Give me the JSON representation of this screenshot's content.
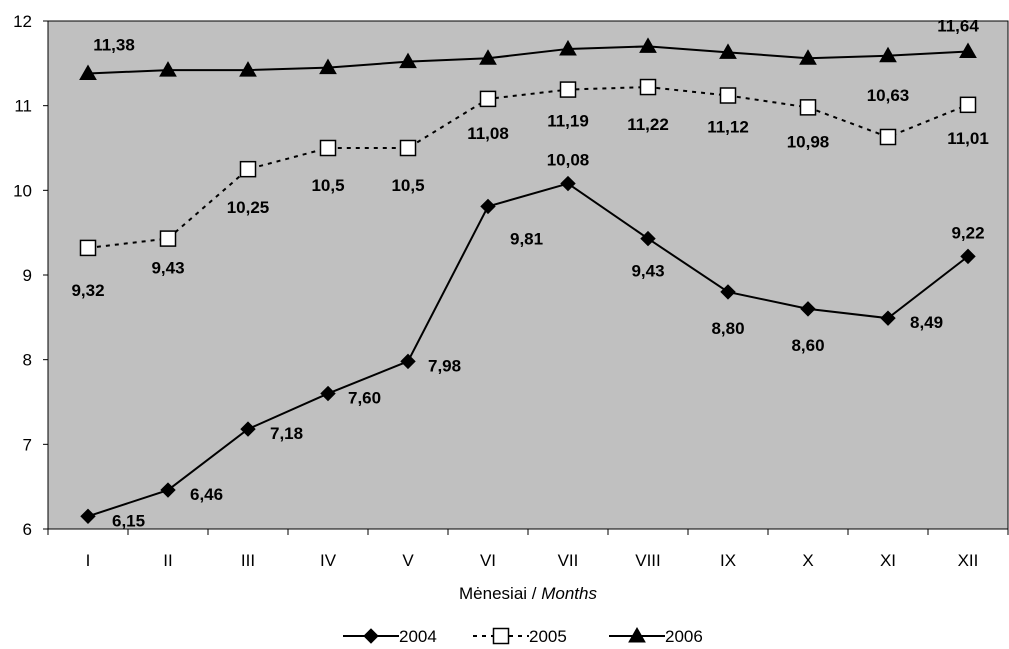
{
  "chart_data": {
    "type": "line",
    "title": "",
    "xlabel": {
      "lt": "Mėnesiai",
      "sep": " / ",
      "en": "Months"
    },
    "ylabel": "",
    "ylim": [
      6,
      12
    ],
    "yticks": [
      "6",
      "7",
      "8",
      "9",
      "10",
      "11",
      "12"
    ],
    "grid": false,
    "legend_position": "bottom",
    "background_color": "#c0c0c0",
    "categories": [
      "I",
      "II",
      "III",
      "IV",
      "V",
      "VI",
      "VII",
      "VIII",
      "IX",
      "X",
      "XI",
      "XII"
    ],
    "series": [
      {
        "name": "2004",
        "marker": "diamond",
        "line": "solid",
        "color": "#000000",
        "values": [
          6.15,
          6.46,
          7.18,
          7.6,
          7.98,
          9.81,
          10.08,
          9.43,
          8.8,
          8.6,
          8.49,
          9.22
        ],
        "labels": [
          "6,15",
          "6,46",
          "7,18",
          "7,60",
          "7,98",
          "9,81",
          "10,08",
          "9,43",
          "8,80",
          "8,60",
          "8,49",
          "9,22"
        ]
      },
      {
        "name": "2005",
        "marker": "square-open",
        "line": "dashed",
        "color": "#000000",
        "values": [
          9.32,
          9.43,
          10.25,
          10.5,
          10.5,
          11.08,
          11.19,
          11.22,
          11.12,
          10.98,
          10.63,
          11.01
        ],
        "labels": [
          "9,32",
          "9,43",
          "10,25",
          "10,5",
          "10,5",
          "11,08",
          "11,19",
          "11,22",
          "11,12",
          "10,98",
          "10,63",
          "11,01"
        ]
      },
      {
        "name": "2006",
        "marker": "triangle",
        "line": "solid",
        "color": "#000000",
        "values": [
          11.38,
          11.42,
          11.42,
          11.45,
          11.52,
          11.56,
          11.67,
          11.7,
          11.63,
          11.56,
          11.59,
          11.64
        ],
        "labels": [
          "11,38",
          "",
          "",
          "",
          "",
          "",
          "",
          "",
          "",
          "",
          "",
          "11,64"
        ]
      }
    ]
  }
}
